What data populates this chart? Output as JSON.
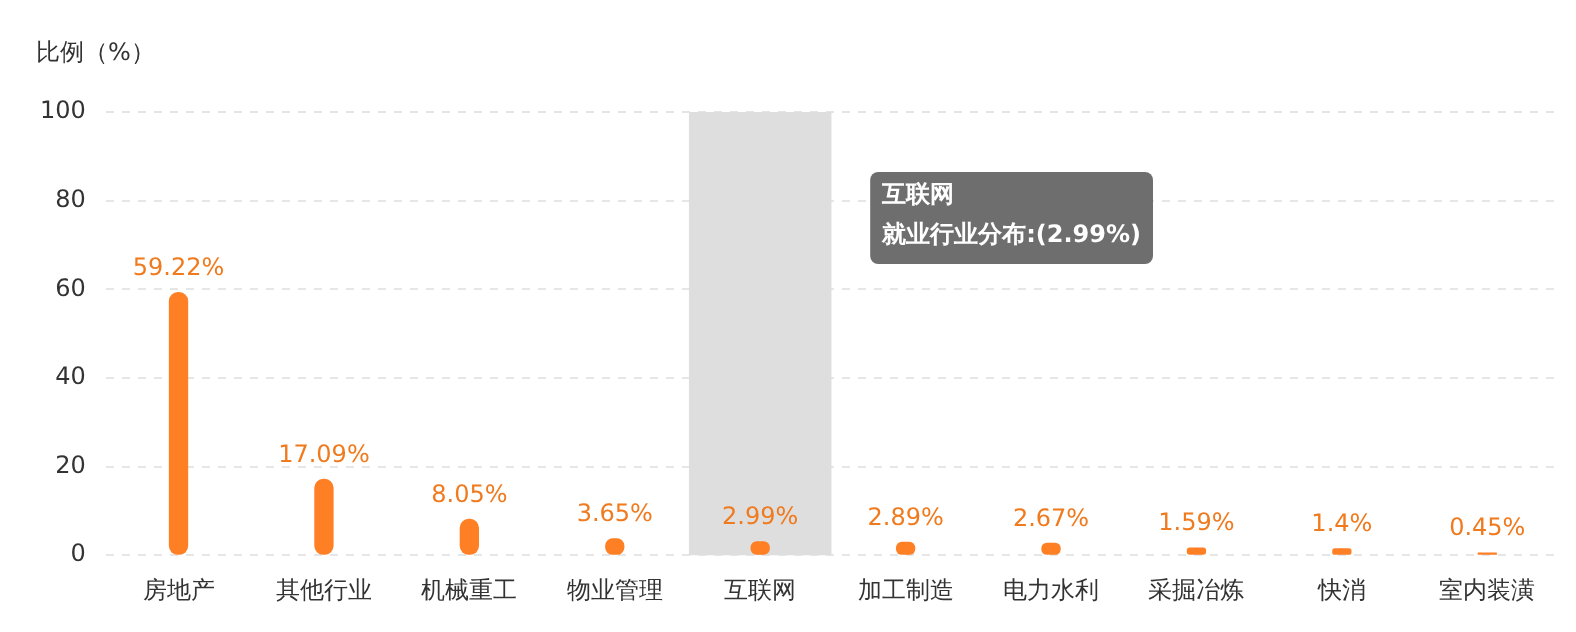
{
  "chart_data": {
    "type": "bar",
    "ylabel": "比例（%）",
    "categories": [
      "房地产",
      "其他行业",
      "机械重工",
      "物业管理",
      "互联网",
      "加工制造",
      "电力水利",
      "采掘冶炼",
      "快消",
      "室内装潢"
    ],
    "values": [
      59.22,
      17.09,
      8.05,
      3.65,
      2.99,
      2.89,
      2.67,
      1.59,
      1.4,
      0.45
    ],
    "value_labels": [
      "59.22%",
      "17.09%",
      "8.05%",
      "3.65%",
      "2.99%",
      "2.89%",
      "2.67%",
      "1.59%",
      "1.4%",
      "0.45%"
    ],
    "color": "#ff7f24",
    "ylim": [
      0,
      100
    ],
    "yticks": [
      0,
      20,
      40,
      60,
      80,
      100
    ],
    "grid": "y",
    "legend": false,
    "bands": [
      {
        "axis": "x",
        "from": "互联网",
        "to": "互联网",
        "color": "#dedede"
      }
    ],
    "annotations": [
      "互联网",
      "就业行业分布:(2.99%)"
    ]
  }
}
